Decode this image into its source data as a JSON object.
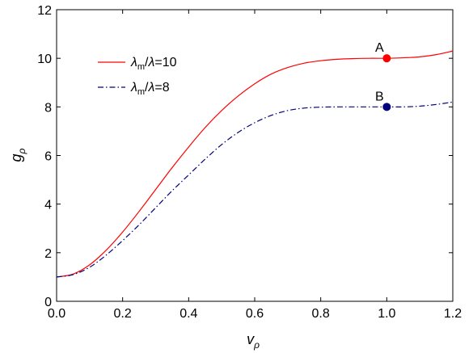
{
  "chart_data": {
    "type": "line",
    "xlabel": {
      "main": "v",
      "sub": "ρ"
    },
    "ylabel": {
      "main": "g",
      "sub": "ρ"
    },
    "xlim": [
      0.0,
      1.2
    ],
    "ylim": [
      0,
      12
    ],
    "xticks": [
      "0.0",
      "0.2",
      "0.4",
      "0.6",
      "0.8",
      "1.0",
      "1.2"
    ],
    "yticks": [
      "0",
      "2",
      "4",
      "6",
      "8",
      "10",
      "12"
    ],
    "grid": false,
    "legend_position": "upper-left",
    "series": [
      {
        "name": {
          "lam": "λ",
          "m": "m",
          "slash": "/",
          "lam2": "λ",
          "rest": "=10"
        },
        "color": "#ff0000",
        "style": "solid",
        "x": [
          0.0,
          0.05,
          0.1,
          0.15,
          0.2,
          0.25,
          0.3,
          0.35,
          0.4,
          0.45,
          0.5,
          0.55,
          0.6,
          0.65,
          0.7,
          0.75,
          0.8,
          0.85,
          0.9,
          0.95,
          1.0,
          1.05,
          1.1,
          1.15,
          1.2
        ],
        "y": [
          1.0,
          1.12,
          1.5,
          2.1,
          2.85,
          3.7,
          4.6,
          5.5,
          6.35,
          7.15,
          7.85,
          8.45,
          8.95,
          9.35,
          9.62,
          9.8,
          9.9,
          9.96,
          9.99,
          10.0,
          10.0,
          10.02,
          10.06,
          10.15,
          10.3
        ]
      },
      {
        "name": {
          "lam": "λ",
          "m": "m",
          "slash": "/",
          "lam2": "λ",
          "rest": "=8"
        },
        "color": "#00007f",
        "style": "dash-dot",
        "x": [
          0.0,
          0.05,
          0.1,
          0.15,
          0.2,
          0.25,
          0.3,
          0.35,
          0.4,
          0.45,
          0.5,
          0.55,
          0.6,
          0.65,
          0.7,
          0.75,
          0.8,
          0.85,
          0.9,
          0.95,
          1.0,
          1.05,
          1.1,
          1.15,
          1.2
        ],
        "y": [
          1.0,
          1.1,
          1.4,
          1.9,
          2.5,
          3.15,
          3.85,
          4.55,
          5.2,
          5.85,
          6.45,
          6.95,
          7.35,
          7.65,
          7.85,
          7.95,
          7.99,
          8.0,
          8.0,
          8.0,
          8.0,
          8.0,
          8.03,
          8.1,
          8.2
        ]
      }
    ],
    "points": [
      {
        "label": "A",
        "x": 1.0,
        "y": 10.0,
        "color": "#ff0000"
      },
      {
        "label": "B",
        "x": 1.0,
        "y": 8.0,
        "color": "#00007f"
      }
    ]
  }
}
